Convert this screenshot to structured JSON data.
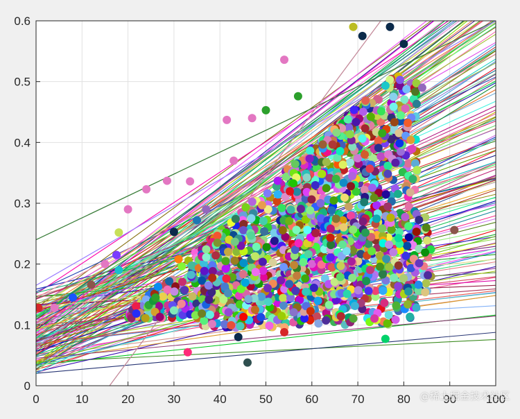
{
  "watermark": "@稀土掘金技术社区",
  "chart_data": {
    "type": "scatter",
    "title": "",
    "xlabel": "",
    "ylabel": "",
    "xlim": [
      0,
      100
    ],
    "ylim": [
      0,
      0.6
    ],
    "xticks": [
      0,
      10,
      20,
      30,
      40,
      50,
      60,
      70,
      80,
      90,
      100
    ],
    "yticks": [
      0,
      0.1,
      0.2,
      0.3,
      0.4,
      0.5,
      0.6
    ],
    "xtick_labels": [
      "0",
      "10",
      "20",
      "30",
      "40",
      "50",
      "60",
      "70",
      "80",
      "90",
      "100"
    ],
    "ytick_labels": [
      "0",
      "0.1",
      "0.2",
      "0.3",
      "0.4",
      "0.5",
      "0.6"
    ],
    "grid": true,
    "legend": "none",
    "notes_visible": "Dense multi-colored point cloud with many fitted regression lines",
    "palette": [
      "#1f77b4",
      "#ff7f0e",
      "#2ca02c",
      "#d62728",
      "#9467bd",
      "#8c564b",
      "#e377c2",
      "#7f7f7f",
      "#bcbd22",
      "#17becf",
      "#1a55ff",
      "#00d26a",
      "#ff2b7a",
      "#7a3cff",
      "#ffcc00",
      "#0b2a4a",
      "#a0522d",
      "#c8e05a",
      "#2f4f4f",
      "#ff4500"
    ],
    "points": [
      {
        "x": 0.5,
        "y": 0.128,
        "c": "#d62728"
      },
      {
        "x": 4,
        "y": 0.128,
        "c": "#e377c2"
      },
      {
        "x": 8,
        "y": 0.145,
        "c": "#1a55ff"
      },
      {
        "x": 12,
        "y": 0.166,
        "c": "#8c564b"
      },
      {
        "x": 15,
        "y": 0.2,
        "c": "#e377c2"
      },
      {
        "x": 17.5,
        "y": 0.215,
        "c": "#7a3cff"
      },
      {
        "x": 18,
        "y": 0.19,
        "c": "#17becf"
      },
      {
        "x": 18,
        "y": 0.252,
        "c": "#c8e05a"
      },
      {
        "x": 20,
        "y": 0.29,
        "c": "#e377c2"
      },
      {
        "x": 24,
        "y": 0.323,
        "c": "#e377c2"
      },
      {
        "x": 26,
        "y": 0.145,
        "c": "#2ca02c"
      },
      {
        "x": 28.5,
        "y": 0.337,
        "c": "#e377c2"
      },
      {
        "x": 30,
        "y": 0.253,
        "c": "#0b2a4a"
      },
      {
        "x": 31,
        "y": 0.208,
        "c": "#ff7f0e"
      },
      {
        "x": 33.5,
        "y": 0.336,
        "c": "#e377c2"
      },
      {
        "x": 33,
        "y": 0.055,
        "c": "#ff2b7a"
      },
      {
        "x": 35,
        "y": 0.272,
        "c": "#1f77b4"
      },
      {
        "x": 37,
        "y": 0.29,
        "c": "#9467bd"
      },
      {
        "x": 41.5,
        "y": 0.437,
        "c": "#e377c2"
      },
      {
        "x": 43,
        "y": 0.37,
        "c": "#e377c2"
      },
      {
        "x": 44,
        "y": 0.08,
        "c": "#0b2a4a"
      },
      {
        "x": 46,
        "y": 0.038,
        "c": "#2f4f4f"
      },
      {
        "x": 47,
        "y": 0.44,
        "c": "#e377c2"
      },
      {
        "x": 50,
        "y": 0.453,
        "c": "#2ca02c"
      },
      {
        "x": 54,
        "y": 0.536,
        "c": "#e377c2"
      },
      {
        "x": 57,
        "y": 0.476,
        "c": "#2ca02c"
      },
      {
        "x": 69,
        "y": 0.59,
        "c": "#bcbd22"
      },
      {
        "x": 71,
        "y": 0.575,
        "c": "#0b2a4a"
      },
      {
        "x": 77,
        "y": 0.59,
        "c": "#0b2a4a"
      },
      {
        "x": 80,
        "y": 0.562,
        "c": "#0b2a4a"
      },
      {
        "x": 76,
        "y": 0.077,
        "c": "#00d26a"
      },
      {
        "x": 54,
        "y": 0.088,
        "c": "#d62728"
      },
      {
        "x": 91,
        "y": 0.256,
        "c": "#8c564b"
      },
      {
        "x": 84,
        "y": 0.49,
        "c": "#9467bd"
      }
    ],
    "cloud_regions": [
      {
        "x": [
          20,
          44
        ],
        "y": [
          0.11,
          0.3
        ],
        "n": 260
      },
      {
        "x": [
          36,
          62
        ],
        "y": [
          0.095,
          0.42
        ],
        "n": 620
      },
      {
        "x": [
          55,
          83
        ],
        "y": [
          0.1,
          0.52
        ],
        "n": 900
      },
      {
        "x": [
          64,
          86
        ],
        "y": [
          0.15,
          0.28
        ],
        "n": 220
      },
      {
        "x": [
          62,
          72
        ],
        "y": [
          0.38,
          0.57
        ],
        "n": 120
      }
    ],
    "lines_count": 150
  }
}
